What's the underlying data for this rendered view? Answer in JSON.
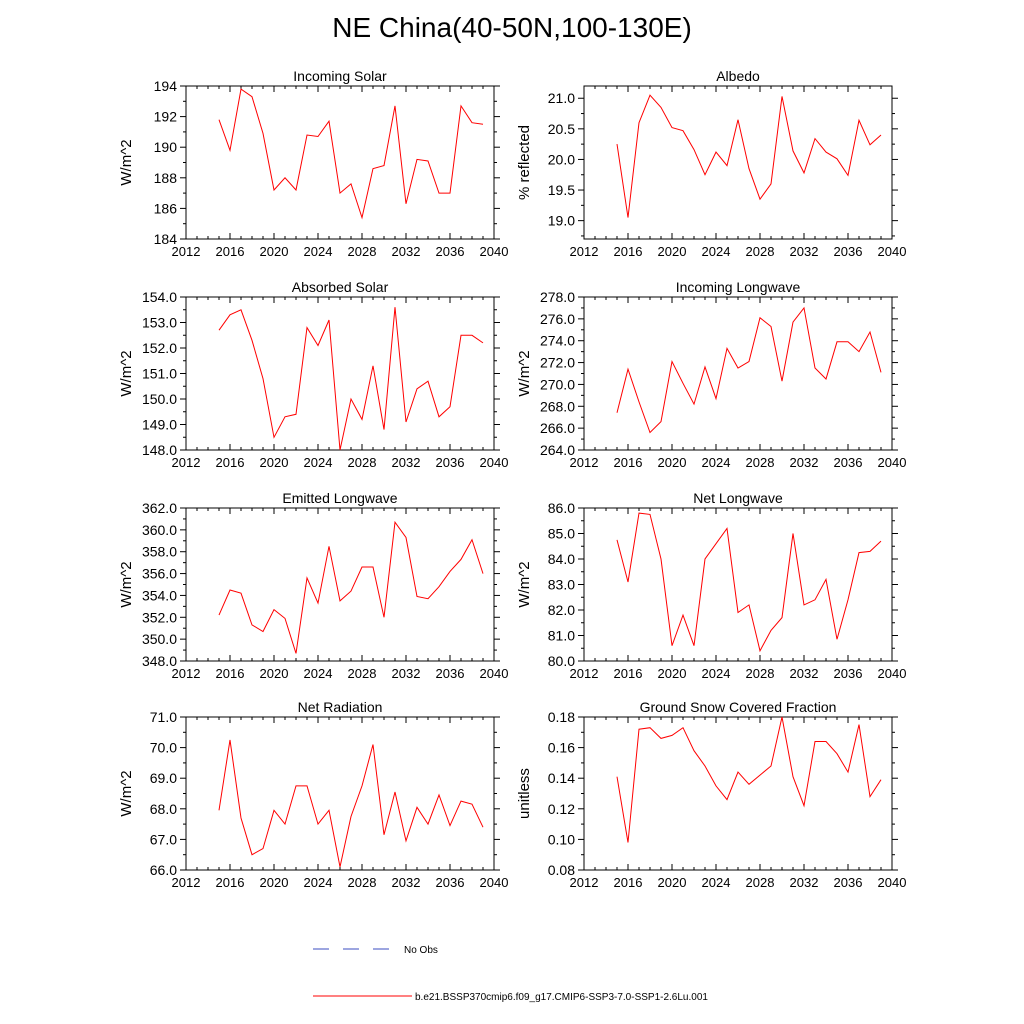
{
  "title": "NE China(40-50N,100-130E)",
  "legend": {
    "obs_label": "No Obs",
    "obs_color": "#3b4cc0",
    "model_label": "b.e21.BSSP370cmip6.f09_g17.CMIP6-SSP3-7.0-SSP1-2.6Lu.001",
    "model_color": "#ff0000"
  },
  "chart_data": [
    {
      "type": "line",
      "title": "Incoming Solar",
      "ylabel": "W/m^2",
      "xlim": [
        2012,
        2040
      ],
      "xticks": [
        "2012",
        "2016",
        "2020",
        "2024",
        "2028",
        "2032",
        "2036",
        "2040"
      ],
      "ylim": [
        184,
        194
      ],
      "yticks": [
        "184",
        "186",
        "188",
        "190",
        "192",
        "194"
      ],
      "series": [
        {
          "x": [
            2015,
            2016,
            2017,
            2018,
            2019,
            2020,
            2021,
            2022,
            2023,
            2024,
            2025,
            2026,
            2027,
            2028,
            2029,
            2030,
            2031,
            2032,
            2033,
            2034,
            2035,
            2036,
            2037,
            2038,
            2039
          ],
          "values": [
            191.8,
            189.8,
            193.8,
            193.3,
            190.9,
            187.2,
            188.0,
            187.2,
            190.8,
            190.7,
            191.7,
            187.0,
            187.6,
            185.4,
            188.6,
            188.8,
            192.7,
            186.3,
            189.2,
            189.1,
            187.0,
            187.0,
            192.7,
            191.6,
            191.5
          ]
        }
      ]
    },
    {
      "type": "line",
      "title": "Albedo",
      "ylabel": "% reflected",
      "xlim": [
        2012,
        2040
      ],
      "xticks": [
        "2012",
        "2016",
        "2020",
        "2024",
        "2028",
        "2032",
        "2036",
        "2040"
      ],
      "ylim": [
        18.7,
        21.2
      ],
      "yticks": [
        "19.0",
        "19.5",
        "20.0",
        "20.5",
        "21.0"
      ],
      "series": [
        {
          "x": [
            2015,
            2016,
            2017,
            2018,
            2019,
            2020,
            2021,
            2022,
            2023,
            2024,
            2025,
            2026,
            2027,
            2028,
            2029,
            2030,
            2031,
            2032,
            2033,
            2034,
            2035,
            2036,
            2037,
            2038,
            2039
          ],
          "values": [
            20.25,
            19.05,
            20.6,
            21.05,
            20.85,
            20.52,
            20.47,
            20.16,
            19.75,
            20.12,
            19.9,
            20.65,
            19.85,
            19.35,
            19.6,
            21.03,
            20.14,
            19.78,
            20.34,
            20.12,
            20.01,
            19.74,
            20.64,
            20.24,
            20.4
          ]
        }
      ]
    },
    {
      "type": "line",
      "title": "Absorbed Solar",
      "ylabel": "W/m^2",
      "xlim": [
        2012,
        2040
      ],
      "xticks": [
        "2012",
        "2016",
        "2020",
        "2024",
        "2028",
        "2032",
        "2036",
        "2040"
      ],
      "ylim": [
        148,
        154
      ],
      "yticks": [
        "148.0",
        "149.0",
        "150.0",
        "151.0",
        "152.0",
        "153.0",
        "154.0"
      ],
      "series": [
        {
          "x": [
            2015,
            2016,
            2017,
            2018,
            2019,
            2020,
            2021,
            2022,
            2023,
            2024,
            2025,
            2026,
            2027,
            2028,
            2029,
            2030,
            2031,
            2032,
            2033,
            2034,
            2035,
            2036,
            2037,
            2038,
            2039
          ],
          "values": [
            152.7,
            153.3,
            153.5,
            152.3,
            150.8,
            148.5,
            149.3,
            149.4,
            152.8,
            152.1,
            153.1,
            148.0,
            150.0,
            149.2,
            151.3,
            148.8,
            153.6,
            149.1,
            150.4,
            150.7,
            149.3,
            149.7,
            152.5,
            152.5,
            152.2
          ]
        }
      ]
    },
    {
      "type": "line",
      "title": "Incoming Longwave",
      "ylabel": "W/m^2",
      "xlim": [
        2012,
        2040
      ],
      "xticks": [
        "2012",
        "2016",
        "2020",
        "2024",
        "2028",
        "2032",
        "2036",
        "2040"
      ],
      "ylim": [
        264,
        278
      ],
      "yticks": [
        "264.0",
        "266.0",
        "268.0",
        "270.0",
        "272.0",
        "274.0",
        "276.0",
        "278.0"
      ],
      "series": [
        {
          "x": [
            2015,
            2016,
            2017,
            2018,
            2019,
            2020,
            2021,
            2022,
            2023,
            2024,
            2025,
            2026,
            2027,
            2028,
            2029,
            2030,
            2031,
            2032,
            2033,
            2034,
            2035,
            2036,
            2037,
            2038,
            2039
          ],
          "values": [
            267.4,
            271.4,
            268.4,
            265.6,
            266.6,
            272.1,
            270.1,
            268.2,
            271.6,
            268.7,
            273.3,
            271.5,
            272.1,
            276.1,
            275.3,
            270.3,
            275.7,
            277.0,
            271.5,
            270.5,
            273.9,
            273.9,
            273.0,
            274.8,
            271.1
          ]
        }
      ]
    },
    {
      "type": "line",
      "title": "Emitted Longwave",
      "ylabel": "W/m^2",
      "xlim": [
        2012,
        2040
      ],
      "xticks": [
        "2012",
        "2016",
        "2020",
        "2024",
        "2028",
        "2032",
        "2036",
        "2040"
      ],
      "ylim": [
        348,
        362
      ],
      "yticks": [
        "348.0",
        "350.0",
        "352.0",
        "354.0",
        "356.0",
        "358.0",
        "360.0",
        "362.0"
      ],
      "series": [
        {
          "x": [
            2015,
            2016,
            2017,
            2018,
            2019,
            2020,
            2021,
            2022,
            2023,
            2024,
            2025,
            2026,
            2027,
            2028,
            2029,
            2030,
            2031,
            2032,
            2033,
            2034,
            2035,
            2036,
            2037,
            2038,
            2039
          ],
          "values": [
            352.2,
            354.5,
            354.2,
            351.3,
            350.7,
            352.7,
            351.9,
            348.7,
            355.6,
            353.3,
            358.5,
            353.5,
            354.4,
            356.6,
            356.6,
            352.0,
            360.7,
            359.3,
            353.9,
            353.7,
            354.8,
            356.2,
            357.3,
            359.1,
            356.0
          ]
        }
      ]
    },
    {
      "type": "line",
      "title": "Net Longwave",
      "ylabel": "W/m^2",
      "xlim": [
        2012,
        2040
      ],
      "xticks": [
        "2012",
        "2016",
        "2020",
        "2024",
        "2028",
        "2032",
        "2036",
        "2040"
      ],
      "ylim": [
        80,
        86
      ],
      "yticks": [
        "80.0",
        "81.0",
        "82.0",
        "83.0",
        "84.0",
        "85.0",
        "86.0"
      ],
      "series": [
        {
          "x": [
            2015,
            2016,
            2017,
            2018,
            2019,
            2020,
            2021,
            2022,
            2023,
            2024,
            2025,
            2026,
            2027,
            2028,
            2029,
            2030,
            2031,
            2032,
            2033,
            2034,
            2035,
            2036,
            2037,
            2038,
            2039
          ],
          "values": [
            84.75,
            83.1,
            85.8,
            85.75,
            84.0,
            80.6,
            81.8,
            80.6,
            84.0,
            84.6,
            85.2,
            81.9,
            82.2,
            80.4,
            81.2,
            81.7,
            85.0,
            82.2,
            82.4,
            83.2,
            80.85,
            82.4,
            84.25,
            84.3,
            84.7
          ]
        }
      ]
    },
    {
      "type": "line",
      "title": "Net Radiation",
      "ylabel": "W/m^2",
      "xlim": [
        2012,
        2040
      ],
      "xticks": [
        "2012",
        "2016",
        "2020",
        "2024",
        "2028",
        "2032",
        "2036",
        "2040"
      ],
      "ylim": [
        66,
        71
      ],
      "yticks": [
        "66.0",
        "67.0",
        "68.0",
        "69.0",
        "70.0",
        "71.0"
      ],
      "series": [
        {
          "x": [
            2015,
            2016,
            2017,
            2018,
            2019,
            2020,
            2021,
            2022,
            2023,
            2024,
            2025,
            2026,
            2027,
            2028,
            2029,
            2030,
            2031,
            2032,
            2033,
            2034,
            2035,
            2036,
            2037,
            2038,
            2039
          ],
          "values": [
            67.95,
            70.25,
            67.7,
            66.5,
            66.7,
            67.95,
            67.5,
            68.75,
            68.75,
            67.5,
            67.95,
            66.1,
            67.75,
            68.75,
            70.1,
            67.15,
            68.55,
            66.95,
            68.05,
            67.5,
            68.45,
            67.45,
            68.25,
            68.15,
            67.4
          ]
        }
      ]
    },
    {
      "type": "line",
      "title": "Ground Snow Covered Fraction",
      "ylabel": "unitless",
      "xlim": [
        2012,
        2040
      ],
      "xticks": [
        "2012",
        "2016",
        "2020",
        "2024",
        "2028",
        "2032",
        "2036",
        "2040"
      ],
      "ylim": [
        0.08,
        0.18
      ],
      "yticks": [
        "0.08",
        "0.10",
        "0.12",
        "0.14",
        "0.16",
        "0.18"
      ],
      "series": [
        {
          "x": [
            2015,
            2016,
            2017,
            2018,
            2019,
            2020,
            2021,
            2022,
            2023,
            2024,
            2025,
            2026,
            2027,
            2028,
            2029,
            2030,
            2031,
            2032,
            2033,
            2034,
            2035,
            2036,
            2037,
            2038,
            2039
          ],
          "values": [
            0.141,
            0.098,
            0.172,
            0.173,
            0.166,
            0.168,
            0.173,
            0.158,
            0.148,
            0.135,
            0.126,
            0.144,
            0.136,
            0.142,
            0.148,
            0.18,
            0.141,
            0.122,
            0.164,
            0.164,
            0.156,
            0.144,
            0.175,
            0.128,
            0.139
          ]
        }
      ]
    }
  ]
}
